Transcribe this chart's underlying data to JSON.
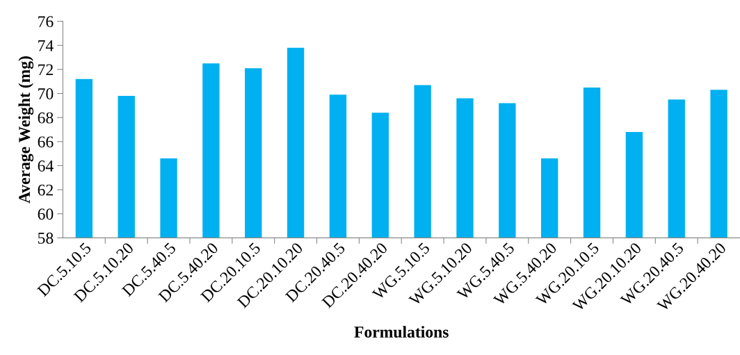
{
  "chart_data": {
    "type": "bar",
    "xlabel": "Formulations",
    "ylabel": "Average Weight (mg)",
    "categories": [
      "DC.5.10.5",
      "DC.5.10.20",
      "DC.5.40.5",
      "DC.5.40.20",
      "DC.20.10.5",
      "DC.20.10.20",
      "DC.20.40.5",
      "DC.20.40.20",
      "WG.5.10.5",
      "WG.5.10.20",
      "WG.5.40.5",
      "WG.5.40.20",
      "WG.20.10.5",
      "WG.20.10.20",
      "WG.20.40.5",
      "WG.20.40.20"
    ],
    "values": [
      71.2,
      69.8,
      64.6,
      72.5,
      72.1,
      73.8,
      69.9,
      68.4,
      70.7,
      69.6,
      69.2,
      64.6,
      70.5,
      66.8,
      69.5,
      70.3
    ],
    "color": "#00b0f0",
    "ylim": [
      58,
      76
    ],
    "yticks": [
      58,
      60,
      62,
      64,
      66,
      68,
      70,
      72,
      74,
      76
    ],
    "grid": false,
    "legend": false
  }
}
